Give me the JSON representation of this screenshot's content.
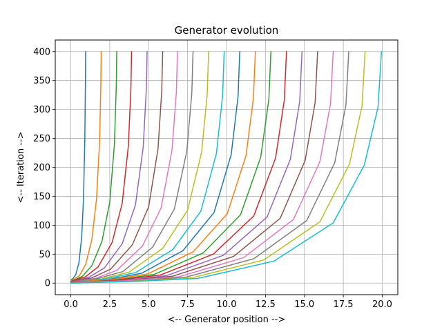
{
  "chart_data": {
    "type": "line",
    "title": "Generator evolution",
    "xlabel": "<-- Generator position -->",
    "ylabel": "<-- Iteration -->",
    "xlim": [
      -1.0,
      21.0
    ],
    "ylim": [
      -20,
      420
    ],
    "xticks": [
      0.0,
      2.5,
      5.0,
      7.5,
      10.0,
      12.5,
      15.0,
      17.5,
      20.0
    ],
    "xtick_labels": [
      "0.0",
      "2.5",
      "5.0",
      "7.5",
      "10.0",
      "12.5",
      "15.0",
      "17.5",
      "20.0"
    ],
    "yticks": [
      0,
      50,
      100,
      150,
      200,
      250,
      300,
      350,
      400
    ],
    "ytick_labels": [
      "0",
      "50",
      "100",
      "150",
      "200",
      "250",
      "300",
      "350",
      "400"
    ],
    "grid": true,
    "legend": "none",
    "colors": [
      "#1f77b4",
      "#ff7f0e",
      "#2ca02c",
      "#d62728",
      "#9467bd",
      "#8c564b",
      "#e377c2",
      "#7f7f7f",
      "#bcbd22",
      "#17becf"
    ],
    "series_description": "20 curves; each starts near x=0 at iteration 0 and converges to its final position at iteration 400",
    "series": [
      {
        "final_x": 0.95,
        "x": [
          0.0,
          0.14,
          0.32,
          0.52,
          0.7,
          0.82,
          0.9,
          0.94,
          0.95
        ],
        "y": [
          5,
          8,
          15,
          35,
          80,
          150,
          250,
          350,
          400
        ]
      },
      {
        "final_x": 1.95,
        "x": [
          0.0,
          0.22,
          0.55,
          0.95,
          1.35,
          1.65,
          1.85,
          1.93,
          1.95
        ],
        "y": [
          4,
          7,
          13,
          32,
          75,
          145,
          245,
          345,
          400
        ]
      },
      {
        "final_x": 2.95,
        "x": [
          0.0,
          0.28,
          0.75,
          1.35,
          2.0,
          2.5,
          2.8,
          2.92,
          2.95
        ],
        "y": [
          3,
          6,
          12,
          30,
          72,
          140,
          240,
          340,
          400
        ]
      },
      {
        "final_x": 3.9,
        "x": [
          0.0,
          0.35,
          0.95,
          1.75,
          2.65,
          3.3,
          3.7,
          3.86,
          3.9
        ],
        "y": [
          3,
          6,
          11,
          28,
          70,
          138,
          238,
          338,
          400
        ]
      },
      {
        "final_x": 4.9,
        "x": [
          0.0,
          0.42,
          1.15,
          2.15,
          3.3,
          4.15,
          4.65,
          4.85,
          4.9
        ],
        "y": [
          2,
          5,
          10,
          26,
          68,
          135,
          235,
          335,
          400
        ]
      },
      {
        "final_x": 5.9,
        "x": [
          0.0,
          0.48,
          1.35,
          2.55,
          3.95,
          5.0,
          5.6,
          5.84,
          5.9
        ],
        "y": [
          2,
          5,
          9,
          24,
          66,
          132,
          232,
          332,
          400
        ]
      },
      {
        "final_x": 6.85,
        "x": [
          0.0,
          0.55,
          1.55,
          2.95,
          4.6,
          5.8,
          6.5,
          6.78,
          6.85
        ],
        "y": [
          2,
          4,
          8,
          22,
          64,
          130,
          230,
          330,
          400
        ]
      },
      {
        "final_x": 7.85,
        "x": [
          0.0,
          0.62,
          1.75,
          3.35,
          5.25,
          6.65,
          7.45,
          7.77,
          7.85
        ],
        "y": [
          2,
          4,
          8,
          20,
          62,
          128,
          228,
          328,
          400
        ]
      },
      {
        "final_x": 8.85,
        "x": [
          0.0,
          0.68,
          1.95,
          3.75,
          5.9,
          7.5,
          8.4,
          8.76,
          8.85
        ],
        "y": [
          1,
          3,
          7,
          19,
          60,
          126,
          226,
          326,
          400
        ]
      },
      {
        "final_x": 9.85,
        "x": [
          0.0,
          0.75,
          2.15,
          4.15,
          6.55,
          8.35,
          9.35,
          9.75,
          9.85
        ],
        "y": [
          1,
          3,
          7,
          18,
          58,
          124,
          224,
          324,
          400
        ]
      },
      {
        "final_x": 10.85,
        "x": [
          0.0,
          0.82,
          2.35,
          4.55,
          7.2,
          9.2,
          10.3,
          10.74,
          10.85
        ],
        "y": [
          1,
          3,
          6,
          17,
          56,
          122,
          222,
          322,
          400
        ]
      },
      {
        "final_x": 11.85,
        "x": [
          0.0,
          0.88,
          2.55,
          4.95,
          7.85,
          10.05,
          11.25,
          11.73,
          11.85
        ],
        "y": [
          1,
          3,
          6,
          16,
          54,
          120,
          220,
          320,
          400
        ]
      },
      {
        "final_x": 12.85,
        "x": [
          0.0,
          0.95,
          2.75,
          5.35,
          8.5,
          10.9,
          12.2,
          12.72,
          12.85
        ],
        "y": [
          1,
          2,
          5,
          15,
          52,
          118,
          218,
          318,
          400
        ]
      },
      {
        "final_x": 13.85,
        "x": [
          0.0,
          1.02,
          2.95,
          5.75,
          9.15,
          11.75,
          13.15,
          13.71,
          13.85
        ],
        "y": [
          1,
          2,
          5,
          14,
          50,
          116,
          216,
          316,
          400
        ]
      },
      {
        "final_x": 14.85,
        "x": [
          0.0,
          1.08,
          3.15,
          6.15,
          9.8,
          12.6,
          14.1,
          14.7,
          14.85
        ],
        "y": [
          1,
          2,
          4,
          13,
          48,
          114,
          214,
          314,
          400
        ]
      },
      {
        "final_x": 15.85,
        "x": [
          0.0,
          1.15,
          3.35,
          6.55,
          10.45,
          13.45,
          15.05,
          15.69,
          15.85
        ],
        "y": [
          1,
          2,
          4,
          12,
          46,
          112,
          212,
          312,
          400
        ]
      },
      {
        "final_x": 16.85,
        "x": [
          0.0,
          1.22,
          3.55,
          6.95,
          11.1,
          14.3,
          16.0,
          16.68,
          16.85
        ],
        "y": [
          0,
          2,
          4,
          11,
          44,
          110,
          210,
          310,
          400
        ]
      },
      {
        "final_x": 17.85,
        "x": [
          0.0,
          1.28,
          3.75,
          7.35,
          11.75,
          15.15,
          16.95,
          17.67,
          17.85
        ],
        "y": [
          0,
          1,
          3,
          10,
          42,
          108,
          208,
          308,
          400
        ]
      },
      {
        "final_x": 18.9,
        "x": [
          0.0,
          1.35,
          3.95,
          7.75,
          12.4,
          16.0,
          17.9,
          18.7,
          18.9
        ],
        "y": [
          0,
          1,
          3,
          9,
          40,
          106,
          206,
          306,
          400
        ]
      },
      {
        "final_x": 19.95,
        "x": [
          0.0,
          1.42,
          4.15,
          8.15,
          13.05,
          16.85,
          18.85,
          19.73,
          19.95
        ],
        "y": [
          0,
          1,
          3,
          8,
          38,
          104,
          204,
          304,
          400
        ]
      }
    ]
  }
}
